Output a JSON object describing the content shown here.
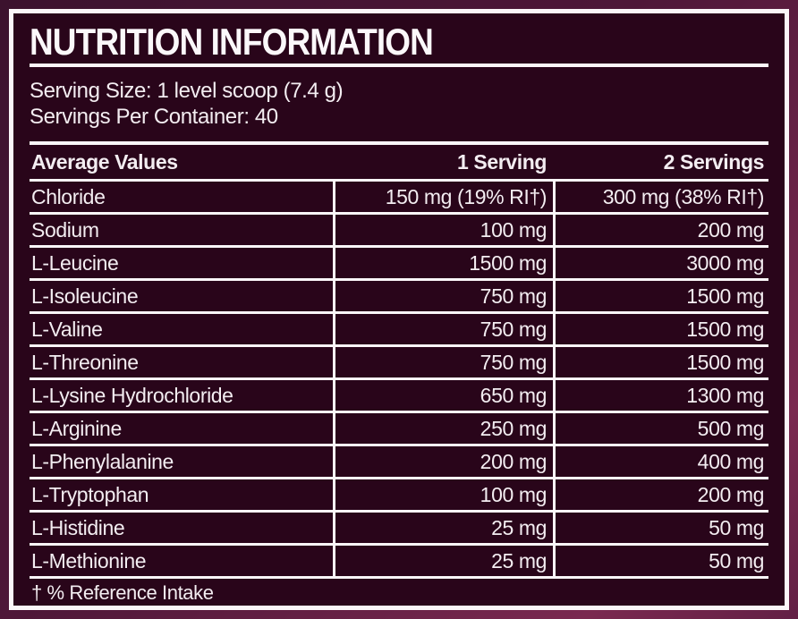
{
  "label": {
    "title": "NUTRITION INFORMATION",
    "serving_size": "Serving Size: 1 level scoop (7.4 g)",
    "servings_per_container": "Servings Per Container: 40",
    "footnote": "† % Reference Intake",
    "colors": {
      "panel_bg": "#29051a",
      "frame_top": "#3c122e",
      "frame_mid": "#4e1738",
      "frame_bottom": "#7a2950",
      "line": "#faf6f8",
      "text": "#f3edf1"
    },
    "table": {
      "columns": [
        "Average Values",
        "1 Serving",
        "2 Servings"
      ],
      "rows": [
        {
          "name": "Chloride",
          "serving1": "150 mg (19% RI†)",
          "serving2": "300 mg (38% RI†)"
        },
        {
          "name": "Sodium",
          "serving1": "100 mg",
          "serving2": "200 mg"
        },
        {
          "name": "L-Leucine",
          "serving1": "1500 mg",
          "serving2": "3000 mg"
        },
        {
          "name": "L-Isoleucine",
          "serving1": "750 mg",
          "serving2": "1500 mg"
        },
        {
          "name": "L-Valine",
          "serving1": "750 mg",
          "serving2": "1500 mg"
        },
        {
          "name": "L-Threonine",
          "serving1": "750 mg",
          "serving2": "1500 mg"
        },
        {
          "name": "L-Lysine Hydrochloride",
          "serving1": "650 mg",
          "serving2": "1300 mg"
        },
        {
          "name": "L-Arginine",
          "serving1": "250 mg",
          "serving2": "500 mg"
        },
        {
          "name": "L-Phenylalanine",
          "serving1": "200 mg",
          "serving2": "400 mg"
        },
        {
          "name": "L-Tryptophan",
          "serving1": "100 mg",
          "serving2": "200 mg"
        },
        {
          "name": "L-Histidine",
          "serving1": "25 mg",
          "serving2": "50 mg"
        },
        {
          "name": "L-Methionine",
          "serving1": "25 mg",
          "serving2": "50 mg"
        }
      ]
    }
  }
}
